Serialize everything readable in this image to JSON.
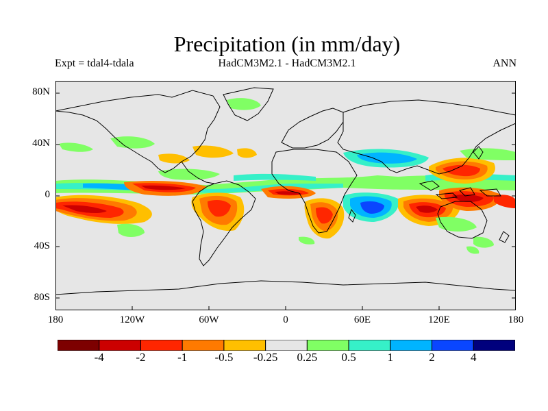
{
  "title": "Precipitation (in mm/day)",
  "subtitle_left": "Expt = tdal4-tdala",
  "subtitle_center": "HadCM3M2.1 - HadCM3M2.1",
  "subtitle_right": "ANN",
  "lat_labels": [
    "80N",
    "40N",
    "0",
    "40S",
    "80S"
  ],
  "lon_labels": [
    "180",
    "120W",
    "60W",
    "0",
    "60E",
    "120E",
    "180"
  ],
  "colorbar": {
    "labels": [
      "-4",
      "-2",
      "-1",
      "-0.5",
      "-0.25",
      "0.25",
      "0.5",
      "1",
      "2",
      "4"
    ],
    "colors": [
      "#7d0000",
      "#cc0000",
      "#ff2600",
      "#ff7a00",
      "#ffbf00",
      "#e6e6e6",
      "#80ff64",
      "#36f0c8",
      "#00b4ff",
      "#0a46ff",
      "#00007d"
    ]
  },
  "map": {
    "background": "#e6e6e6",
    "land_outline": "#000000"
  }
}
